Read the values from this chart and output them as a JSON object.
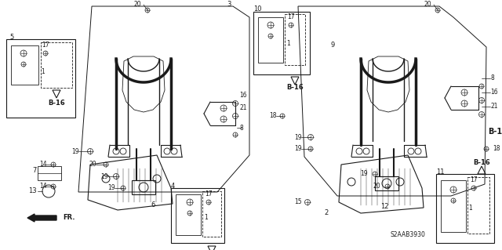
{
  "background_color": "#ffffff",
  "line_color": "#1a1a1a",
  "text_color": "#1a1a1a",
  "b16_label": "B-16",
  "fr_label": "FR.",
  "diagram_code": "S2AAB3930",
  "figsize": [
    6.4,
    3.19
  ],
  "dpi": 100
}
